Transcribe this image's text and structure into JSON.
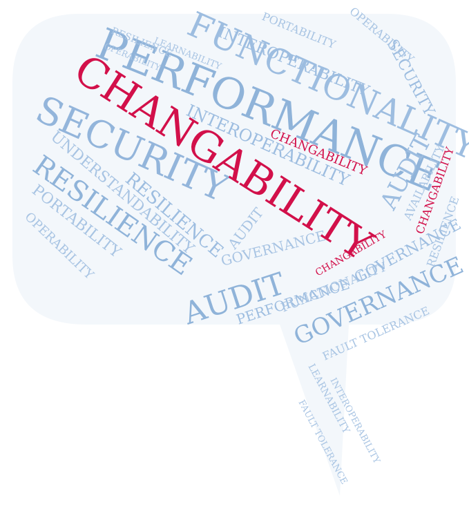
{
  "colors": {
    "primary_word": "#d2104a",
    "secondary_word": "#8fb3d9",
    "light_word": "#b9cfe6",
    "bubble_fill": "#f3f7fb"
  },
  "words": {
    "changability": "CHANGABILITY",
    "performance": "PERFORMANCE",
    "functionality": "FUNCTIONALITY",
    "security": "SECURITY",
    "resilience": "RESILIENCE",
    "audit": "AUDIT",
    "governance": "GOVERNANCE",
    "interoperability": "INTEROPERABILITY",
    "availability": "AVAILABILITY",
    "operability": "OPERABILITY",
    "portability": "PORTABILITY",
    "understandability": "UNDERSTANDABILITY",
    "learnability": "LEARNABILITY",
    "fault_tolerance": "FAULT TOLERANCE"
  }
}
